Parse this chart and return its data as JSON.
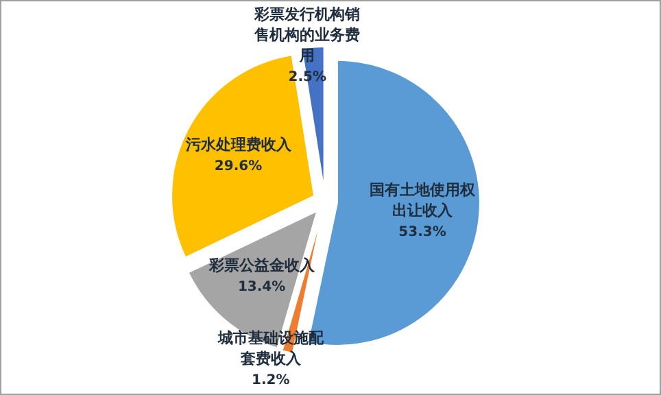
{
  "chart_data": {
    "type": "pie",
    "categories": [
      "国有土地使用权出让收入",
      "城市基础设施配套费收入",
      "彩票公益金收入",
      "污水处理费收入",
      "彩票发行机构销售机构的业务费用"
    ],
    "values": [
      53.3,
      1.2,
      13.4,
      29.6,
      2.5
    ],
    "colors": [
      "#5b9bd5",
      "#ed7d31",
      "#a5a5a5",
      "#ffc000",
      "#4472c4"
    ],
    "value_labels": [
      "53.3%",
      "1.2%",
      "13.4%",
      "29.6%",
      "2.5%"
    ],
    "legend": false
  }
}
